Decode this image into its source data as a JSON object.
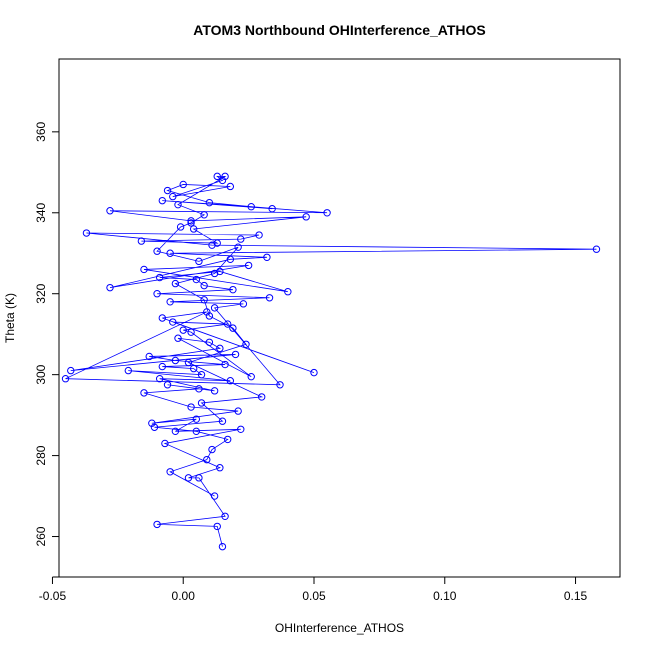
{
  "chart_data": {
    "type": "line",
    "title": "ATOM3 Northbound OHInterference_ATHOS",
    "xlabel": "OHInterference_ATHOS",
    "ylabel": "Theta (K)",
    "xlim": [
      -0.0475,
      0.167
    ],
    "ylim": [
      250,
      378
    ],
    "xticks": [
      -0.05,
      0.0,
      0.05,
      0.1,
      0.15
    ],
    "xtick_labels": [
      "-0.05",
      "0.00",
      "0.05",
      "0.10",
      "0.15"
    ],
    "yticks": [
      260,
      280,
      300,
      320,
      340,
      360
    ],
    "ytick_labels": [
      "260",
      "280",
      "300",
      "320",
      "340",
      "360"
    ],
    "grid": false,
    "series": [
      {
        "color": "#0000ff",
        "marker": "open-circle",
        "x": [
          0.015,
          0.013,
          -0.01,
          0.016,
          0.006,
          0.002,
          0.014,
          -0.007,
          0.022,
          -0.003,
          0.005,
          -0.012,
          0.021,
          0.003,
          -0.015,
          0.006,
          -0.006,
          0.012,
          -0.009,
          0.018,
          -0.021,
          0.007,
          0.004,
          -0.008,
          0.016,
          -0.003,
          -0.013,
          0.02,
          -0.043,
          0.014,
          0.01,
          -0.002,
          0.026,
          0.003,
          0.0,
          0.017,
          -0.004,
          0.05,
          -0.008,
          0.009,
          -0.045,
          0.037,
          0.012,
          0.023,
          -0.005,
          0.033,
          -0.01,
          0.019,
          0.008,
          0.005,
          -0.009,
          0.014,
          0.04,
          -0.015,
          0.025,
          -0.028,
          0.018,
          0.032,
          -0.005,
          0.158,
          0.011,
          -0.037,
          0.029,
          0.022,
          -0.016,
          0.013,
          0.004,
          0.047,
          0.003,
          -0.028,
          0.055,
          0.026,
          -0.008,
          0.034,
          0.01,
          -0.006,
          0.0,
          0.018,
          -0.004,
          0.015,
          0.013,
          0.016,
          -0.002,
          0.008,
          0.003,
          -0.001,
          -0.01,
          0.006,
          0.021,
          0.012,
          -0.003,
          0.008,
          0.01,
          0.019,
          0.024,
          0.002,
          0.03,
          0.007,
          0.015,
          -0.011,
          0.005,
          0.017,
          0.011,
          0.009,
          -0.005,
          0.012
        ],
        "y": [
          257.5,
          262.5,
          263.0,
          265.0,
          274.5,
          274.5,
          277.0,
          283.0,
          286.5,
          286.0,
          289.0,
          288.0,
          291.0,
          292.0,
          295.5,
          296.5,
          297.5,
          296.0,
          299.0,
          298.5,
          301.0,
          300.0,
          301.5,
          302.0,
          302.5,
          303.5,
          304.5,
          305.0,
          301.0,
          306.5,
          308.0,
          309.0,
          299.5,
          310.5,
          311.0,
          312.5,
          313.0,
          300.5,
          314.0,
          315.5,
          299.0,
          297.5,
          316.5,
          317.5,
          318.0,
          319.0,
          320.0,
          321.0,
          322.0,
          323.5,
          324.0,
          325.5,
          320.5,
          326.0,
          327.0,
          321.5,
          328.5,
          329.0,
          330.0,
          331.0,
          332.0,
          335.0,
          334.5,
          333.5,
          333.0,
          332.5,
          336.0,
          339.0,
          338.0,
          340.5,
          340.0,
          341.5,
          343.0,
          341.0,
          342.5,
          345.5,
          347.0,
          346.5,
          344.0,
          348.0,
          349.0,
          349.0,
          342.0,
          339.5,
          337.5,
          336.5,
          330.5,
          328.0,
          331.5,
          325.0,
          322.5,
          318.5,
          314.5,
          311.5,
          307.5,
          303.0,
          294.5,
          293.0,
          288.5,
          287.0,
          286.0,
          284.0,
          281.5,
          279.0,
          276.0,
          270.0
        ]
      }
    ]
  }
}
